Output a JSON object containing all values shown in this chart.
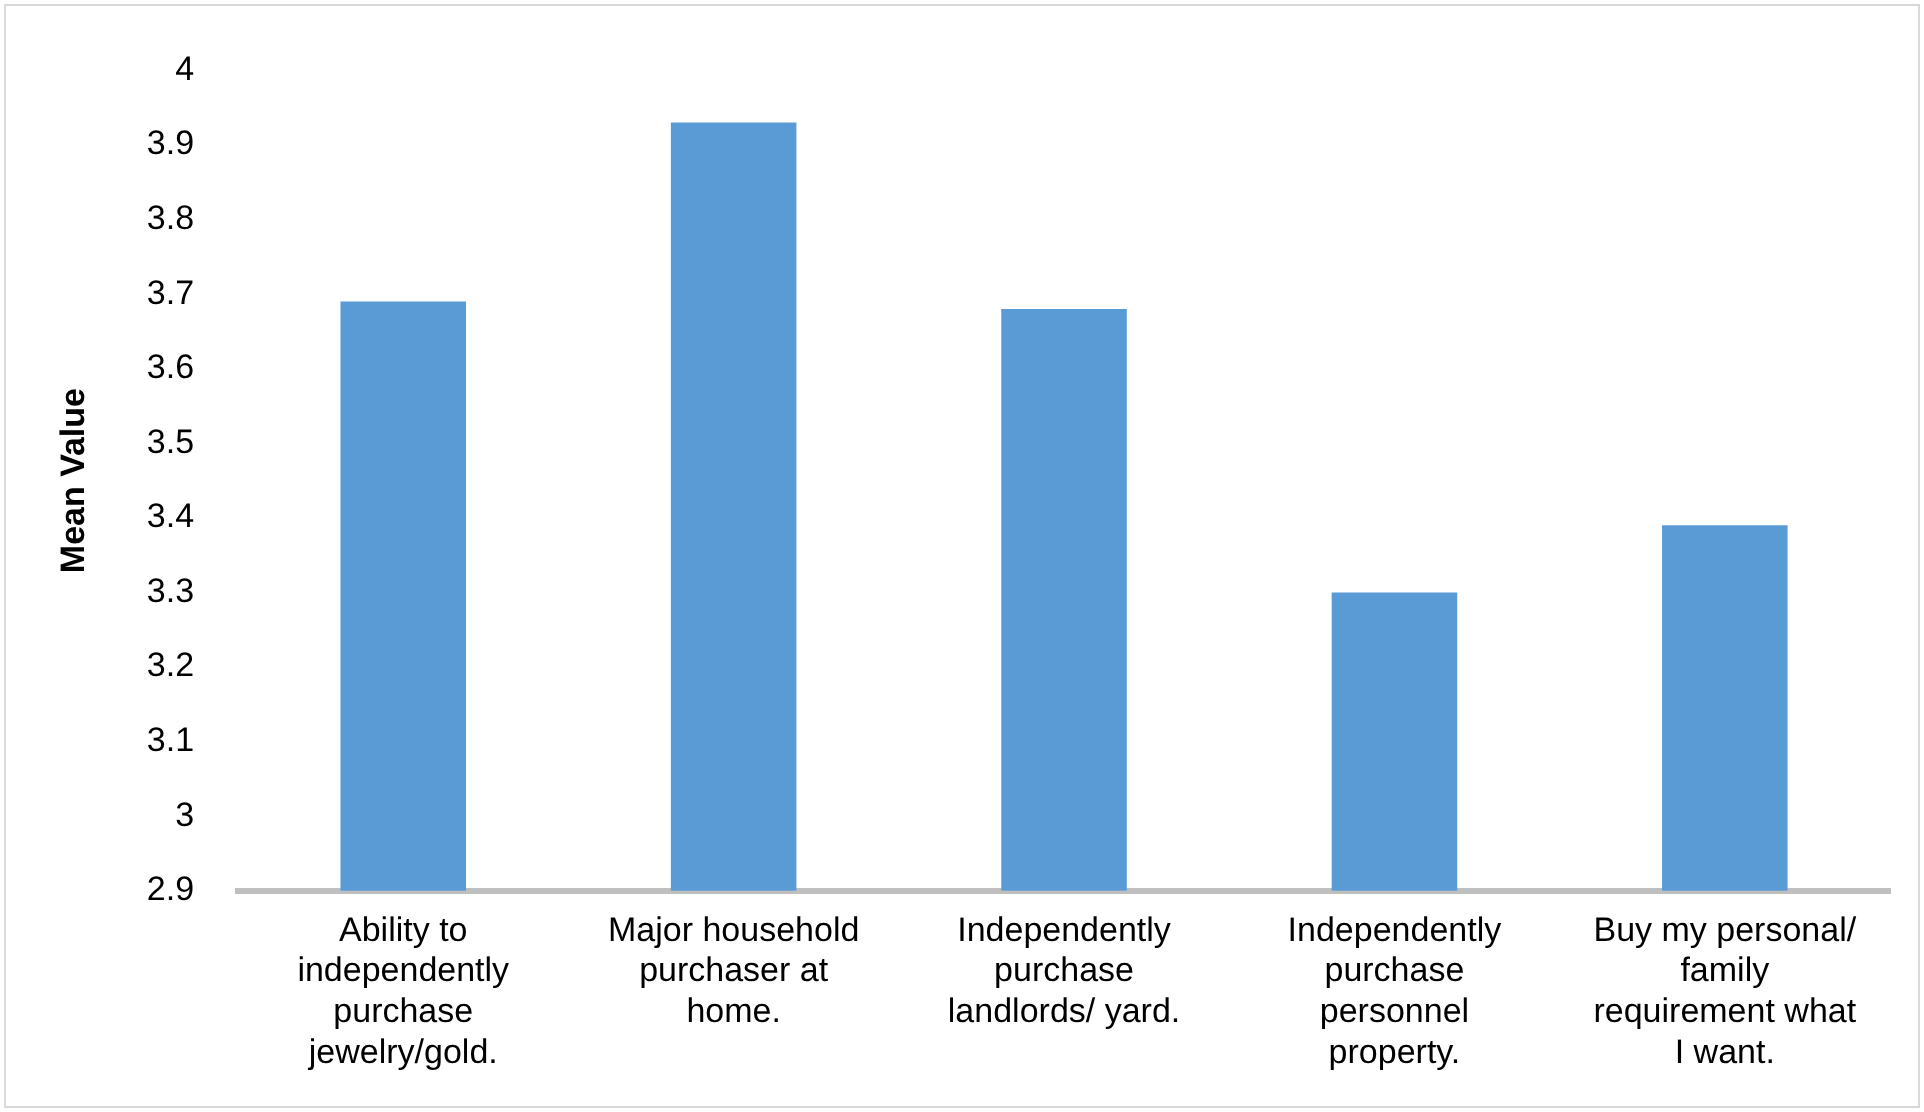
{
  "chart_data": {
    "type": "bar",
    "ylabel": "Mean Value",
    "categories": [
      "Ability to independently purchase jewelry/gold.",
      "Major household purchaser at home.",
      "Independently purchase landlords/ yard.",
      "Independently purchase personnel property.",
      "Buy my personal/ family requirement what I want."
    ],
    "values": [
      3.69,
      3.93,
      3.68,
      3.3,
      3.39
    ],
    "color": "#5b9bd5",
    "ylim": [
      2.9,
      4
    ],
    "yticks": [
      2.9,
      3,
      3.1,
      3.2,
      3.3,
      3.4,
      3.5,
      3.6,
      3.7,
      3.8,
      3.9,
      4
    ],
    "grid": false,
    "legend": false
  }
}
